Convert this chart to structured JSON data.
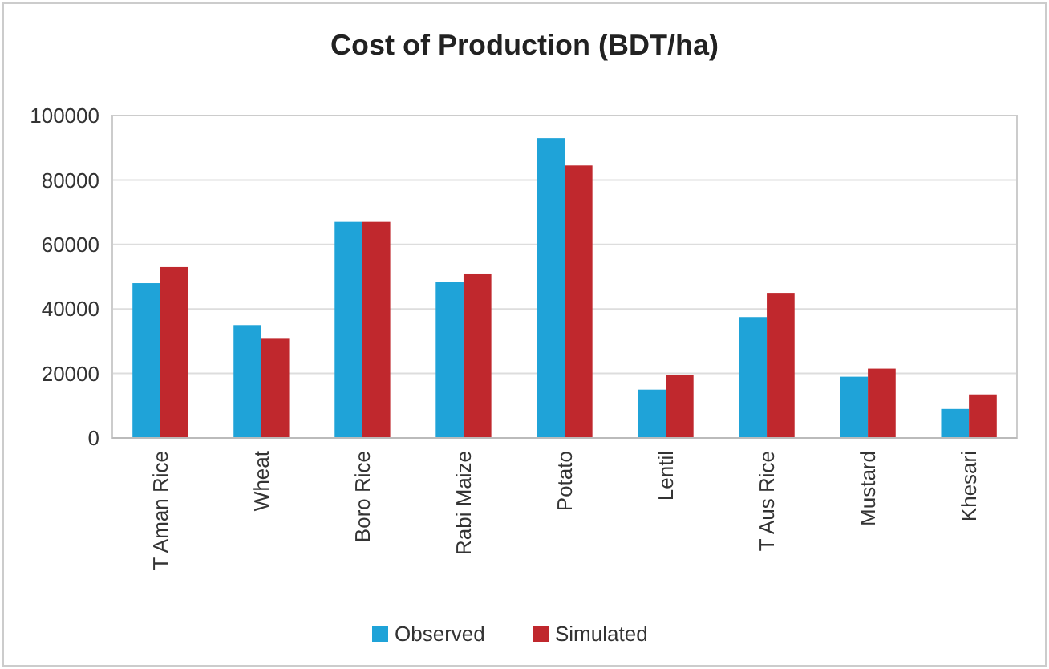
{
  "chart_data": {
    "type": "bar",
    "title": "Cost of Production (BDT/ha)",
    "categories": [
      "T Aman Rice",
      "Wheat",
      "Boro Rice",
      "Rabi Maize",
      "Potato",
      "Lentil",
      "T Aus Rice",
      "Mustard",
      "Khesari"
    ],
    "series": [
      {
        "name": "Observed",
        "color": "#1fa3d8",
        "values": [
          48000,
          35000,
          67000,
          48500,
          93000,
          15000,
          37500,
          19000,
          9000
        ]
      },
      {
        "name": "Simulated",
        "color": "#c0282d",
        "values": [
          53000,
          31000,
          67000,
          51000,
          84500,
          19500,
          45000,
          21500,
          13500
        ]
      }
    ],
    "ylim": [
      0,
      100000
    ],
    "yticks": [
      0,
      20000,
      40000,
      60000,
      80000,
      100000
    ],
    "grid": "y",
    "legend": "bottom"
  }
}
